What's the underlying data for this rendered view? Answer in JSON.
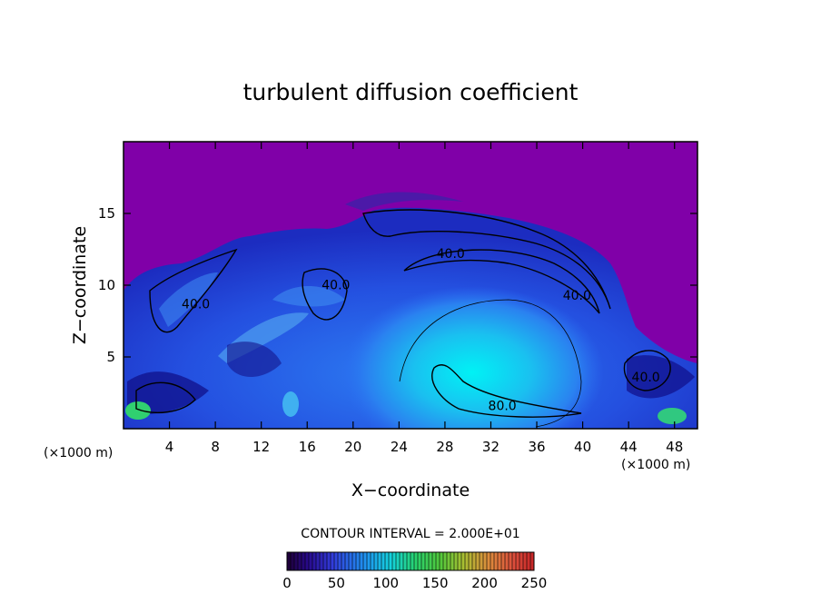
{
  "chart_data": {
    "type": "heatmap",
    "title": "turbulent diffusion coefficient",
    "xlabel": "X−coordinate",
    "ylabel": "Z−coordinate",
    "x_unit": "(×1000 m)",
    "z_unit": "(×1000 m)",
    "xlim": [
      0,
      50
    ],
    "ylim": [
      0,
      20
    ],
    "x_ticks": [
      4,
      8,
      12,
      16,
      20,
      24,
      28,
      32,
      36,
      40,
      44,
      48
    ],
    "y_ticks": [
      5,
      10,
      15
    ],
    "contour_interval_text": "CONTOUR INTERVAL = 2.000E+01",
    "contour_labels": [
      {
        "text": "40.0",
        "x": 28.5,
        "z": 11.9
      },
      {
        "text": "40.0",
        "x": 18.5,
        "z": 9.7
      },
      {
        "text": "40.0",
        "x": 6.3,
        "z": 8.4
      },
      {
        "text": "40.0",
        "x": 39.5,
        "z": 9.0
      },
      {
        "text": "80.0",
        "x": 33.0,
        "z": 1.3
      },
      {
        "text": "40.0",
        "x": 45.5,
        "z": 3.3
      }
    ],
    "colorbar": {
      "range": [
        0,
        250
      ],
      "tick_values": [
        0,
        50,
        100,
        150,
        200,
        250
      ],
      "tick_labels": [
        "0",
        "50",
        "100",
        "150",
        "200",
        "250"
      ]
    },
    "field_description": "Background value ~0 (purple) above the cloud; turbulent diffusion of roughly 20–60 inside the dome-shaped cloud region (x 1–49, z up to ~15); maximum near x≈30, z≈3 (~80–100); small patches > 120 near lower edges",
    "colors": {
      "background": "#8000a8",
      "low": "#1a1aa0",
      "mid": "#2a6af0",
      "high": "#00e6f0",
      "contour": "#000000"
    }
  }
}
